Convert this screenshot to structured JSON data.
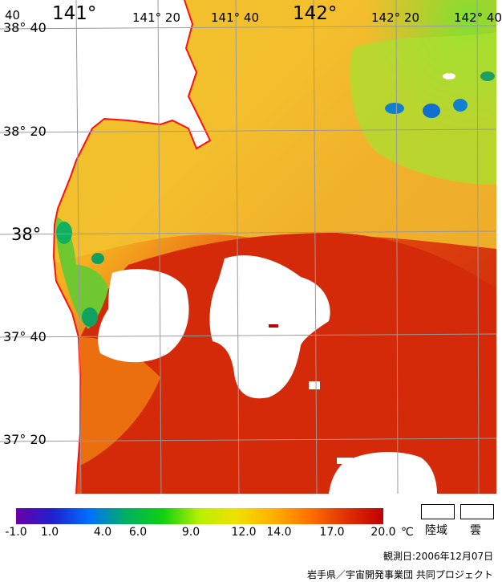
{
  "map": {
    "lon_labels_top": [
      "141°",
      "141° 20",
      "141° 40",
      "142°",
      "142° 20",
      "142° 40"
    ],
    "lon_edge_label": "40",
    "lat_labels": [
      "38° 40",
      "38° 20",
      "38°",
      "37° 40",
      "37° 20"
    ]
  },
  "colorbar": {
    "unit": "℃",
    "ticks": [
      "-1.0",
      "1.0",
      "4.0",
      "6.0",
      "9.0",
      "12.0",
      "14.0",
      "17.0",
      "20.0"
    ],
    "colors": [
      "#6a00a8",
      "#2020d0",
      "#0070ff",
      "#00b060",
      "#10d010",
      "#b8f000",
      "#f0e000",
      "#ffb000",
      "#ff7000",
      "#e03000",
      "#c00000"
    ]
  },
  "legend": {
    "land_label": "陸域",
    "cloud_label": "雲"
  },
  "footer": {
    "observation_date": "観測日:2006年12月07日",
    "credit": "岩手県／宇宙開発事業団 共同プロジェクト"
  }
}
